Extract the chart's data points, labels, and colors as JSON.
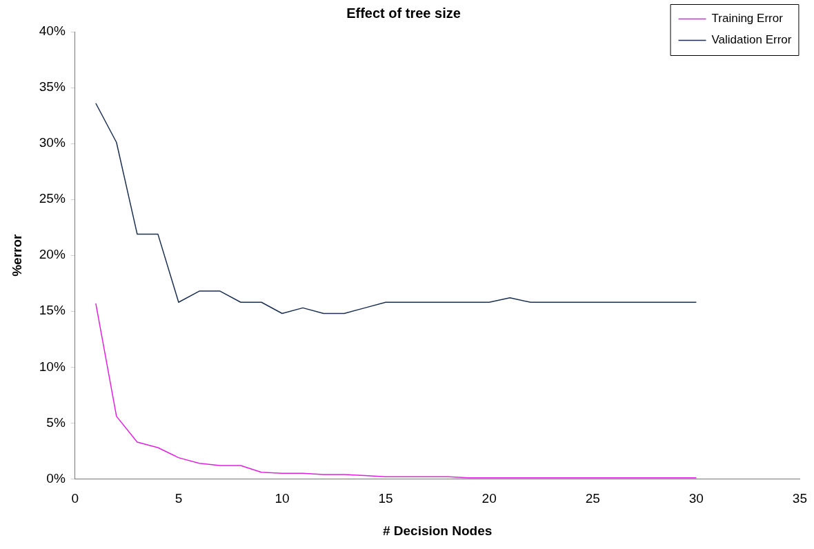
{
  "chart_data": {
    "type": "line",
    "title": "Effect of tree size",
    "xlabel": "# Decision Nodes",
    "ylabel": "%error",
    "x": [
      1,
      2,
      3,
      4,
      5,
      6,
      7,
      8,
      9,
      10,
      11,
      12,
      13,
      14,
      15,
      16,
      17,
      18,
      19,
      20,
      21,
      22,
      23,
      24,
      25,
      26,
      27,
      28,
      29,
      30
    ],
    "series": [
      {
        "name": "Training Error",
        "color": "#e020e0",
        "values": [
          15.7,
          5.6,
          3.3,
          2.8,
          1.9,
          1.4,
          1.2,
          1.2,
          0.6,
          0.5,
          0.5,
          0.4,
          0.4,
          0.3,
          0.2,
          0.2,
          0.2,
          0.2,
          0.1,
          0.1,
          0.1,
          0.1,
          0.1,
          0.1,
          0.1,
          0.1,
          0.1,
          0.1,
          0.1,
          0.1
        ]
      },
      {
        "name": "Validation Error",
        "color": "#1a2e50",
        "values": [
          33.6,
          30.1,
          21.9,
          21.9,
          15.8,
          16.8,
          16.8,
          15.8,
          15.8,
          14.8,
          15.3,
          14.8,
          14.8,
          15.3,
          15.8,
          15.8,
          15.8,
          15.8,
          15.8,
          15.8,
          16.2,
          15.8,
          15.8,
          15.8,
          15.8,
          15.8,
          15.8,
          15.8,
          15.8,
          15.8
        ]
      }
    ],
    "xlim": [
      0,
      35
    ],
    "xticks": [
      0,
      5,
      10,
      15,
      20,
      25,
      30,
      35
    ],
    "ylim": [
      0,
      40
    ],
    "yticks": [
      {
        "value": 0,
        "label": "0%"
      },
      {
        "value": 5,
        "label": "5%"
      },
      {
        "value": 10,
        "label": "10%"
      },
      {
        "value": 15,
        "label": "15%"
      },
      {
        "value": 20,
        "label": "20%"
      },
      {
        "value": 25,
        "label": "25%"
      },
      {
        "value": 30,
        "label": "30%"
      },
      {
        "value": 35,
        "label": "35%"
      },
      {
        "value": 40,
        "label": "40%"
      }
    ],
    "grid": false,
    "legend": "top right",
    "marker": "none",
    "line_style": "solid"
  }
}
